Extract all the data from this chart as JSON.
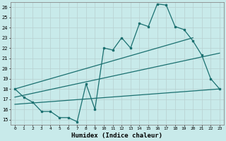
{
  "xlabel": "Humidex (Indice chaleur)",
  "bg_color": "#c8eaea",
  "grid_color": "#b8d0d0",
  "line_color": "#1a7070",
  "xlim": [
    -0.5,
    23.5
  ],
  "ylim": [
    14.5,
    26.5
  ],
  "xticks": [
    0,
    1,
    2,
    3,
    4,
    5,
    6,
    7,
    8,
    9,
    10,
    11,
    12,
    13,
    14,
    15,
    16,
    17,
    18,
    19,
    20,
    21,
    22,
    23
  ],
  "yticks": [
    15,
    16,
    17,
    18,
    19,
    20,
    21,
    22,
    23,
    24,
    25,
    26
  ],
  "series1_x": [
    0,
    1,
    2,
    3,
    4,
    5,
    6,
    7,
    8,
    9,
    10,
    11,
    12,
    13,
    14,
    15,
    16,
    17,
    18,
    19,
    20,
    21,
    22,
    23
  ],
  "series1_y": [
    18.0,
    17.2,
    16.7,
    15.8,
    15.8,
    15.2,
    15.2,
    14.8,
    18.5,
    16.0,
    22.0,
    21.8,
    23.0,
    22.0,
    24.4,
    24.1,
    26.3,
    26.2,
    24.1,
    23.8,
    22.7,
    21.3,
    19.0,
    18.0
  ],
  "series2_x": [
    0,
    20
  ],
  "series2_y": [
    18.0,
    23.0
  ],
  "series3_x": [
    0,
    23
  ],
  "series3_y": [
    17.2,
    21.5
  ],
  "series4_x": [
    0,
    23
  ],
  "series4_y": [
    16.5,
    18.0
  ]
}
